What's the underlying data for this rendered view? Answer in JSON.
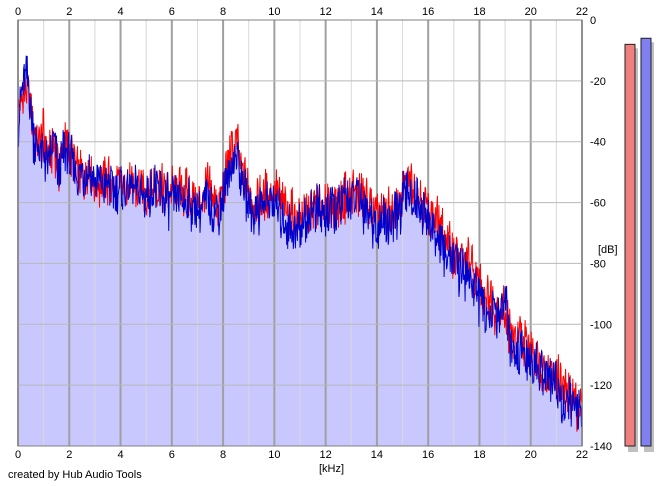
{
  "footer": {
    "credit": "created by Hub Audio Tools"
  },
  "chart_data": {
    "type": "line",
    "xlabel": "[kHz]",
    "ylabel": "[dB]",
    "xlim": [
      0,
      22
    ],
    "ylim": [
      -140,
      0
    ],
    "x_ticks": [
      "0",
      "2",
      "4",
      "6",
      "8",
      "10",
      "12",
      "14",
      "16",
      "18",
      "20",
      "22"
    ],
    "y_ticks": [
      "0",
      "-20",
      "-40",
      "-60",
      "-80",
      "-100",
      "-120",
      "-140"
    ],
    "grid": true,
    "colors": {
      "series_1": "#ff0000",
      "series_2": "#0000cc",
      "fill": "#c8c8ff",
      "meter_1": "#f08080",
      "meter_2": "#8080f0"
    },
    "series": [
      {
        "color": "#ff0000",
        "x": [
          0,
          0.2,
          0.4,
          0.6,
          0.8,
          1.0,
          1.2,
          1.4,
          1.6,
          1.8,
          2.0,
          2.2,
          2.4,
          2.6,
          2.8,
          3.0,
          3.4,
          3.8,
          4.2,
          4.6,
          5.0,
          5.4,
          5.8,
          6.2,
          6.6,
          7.0,
          7.4,
          7.8,
          8.2,
          8.5,
          8.8,
          9.2,
          9.6,
          10.0,
          10.4,
          10.8,
          11.2,
          11.6,
          12.0,
          12.4,
          12.8,
          13.2,
          13.6,
          14.0,
          14.4,
          14.8,
          15.2,
          15.6,
          16.0,
          16.4,
          16.8,
          17.2,
          17.6,
          18.0,
          18.4,
          18.8,
          19.0,
          19.2,
          19.6,
          20.0,
          20.4,
          20.8,
          21.2,
          21.6,
          22.0
        ],
        "y": [
          -32,
          -25,
          -22,
          -35,
          -40,
          -38,
          -45,
          -42,
          -50,
          -40,
          -44,
          -46,
          -50,
          -52,
          -48,
          -55,
          -52,
          -56,
          -54,
          -55,
          -57,
          -54,
          -58,
          -56,
          -58,
          -60,
          -55,
          -62,
          -48,
          -40,
          -52,
          -60,
          -58,
          -56,
          -62,
          -65,
          -64,
          -60,
          -62,
          -60,
          -58,
          -56,
          -60,
          -65,
          -64,
          -62,
          -52,
          -56,
          -62,
          -68,
          -74,
          -78,
          -80,
          -86,
          -92,
          -96,
          -94,
          -104,
          -106,
          -108,
          -112,
          -116,
          -120,
          -124,
          -128
        ]
      },
      {
        "color": "#0000cc",
        "x": [
          0,
          0.2,
          0.4,
          0.6,
          0.8,
          1.0,
          1.2,
          1.4,
          1.6,
          1.8,
          2.0,
          2.2,
          2.4,
          2.6,
          2.8,
          3.0,
          3.4,
          3.8,
          4.2,
          4.6,
          5.0,
          5.4,
          5.8,
          6.2,
          6.6,
          7.0,
          7.4,
          7.8,
          8.2,
          8.5,
          8.8,
          9.2,
          9.6,
          10.0,
          10.4,
          10.8,
          11.2,
          11.6,
          12.0,
          12.4,
          12.8,
          13.2,
          13.6,
          14.0,
          14.4,
          14.8,
          15.2,
          15.6,
          16.0,
          16.4,
          16.8,
          17.2,
          17.6,
          18.0,
          18.4,
          18.8,
          19.0,
          19.2,
          19.6,
          20.0,
          20.4,
          20.8,
          21.2,
          21.6,
          22.0
        ],
        "y": [
          -34,
          -22,
          -20,
          -38,
          -42,
          -44,
          -48,
          -40,
          -52,
          -42,
          -46,
          -48,
          -52,
          -50,
          -50,
          -53,
          -54,
          -55,
          -56,
          -56,
          -58,
          -55,
          -60,
          -58,
          -60,
          -62,
          -58,
          -64,
          -52,
          -44,
          -56,
          -64,
          -60,
          -60,
          -66,
          -70,
          -66,
          -62,
          -64,
          -62,
          -60,
          -58,
          -62,
          -68,
          -66,
          -64,
          -56,
          -60,
          -66,
          -72,
          -78,
          -82,
          -84,
          -92,
          -96,
          -98,
          -90,
          -108,
          -110,
          -112,
          -116,
          -118,
          -124,
          -126,
          -130
        ]
      }
    ],
    "level_meters": [
      {
        "color": "#f08080",
        "value_db": -8
      },
      {
        "color": "#8080f0",
        "value_db": -6
      }
    ]
  }
}
